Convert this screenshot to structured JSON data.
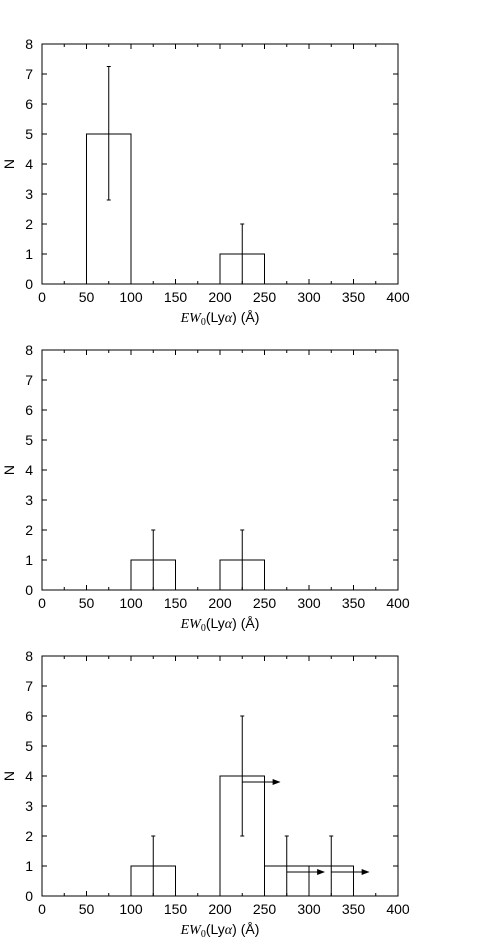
{
  "chart_data": [
    {
      "type": "bar",
      "style": "histogram-step",
      "xlabel": "EW0(Lyα) (Å)",
      "xlabel_parts": [
        "EW",
        "0",
        "(Ly",
        "α",
        ") (Å)"
      ],
      "ylabel": "N",
      "xlim": [
        0,
        400
      ],
      "ylim": [
        0,
        8
      ],
      "xticks": [
        0,
        50,
        100,
        150,
        200,
        250,
        300,
        350,
        400
      ],
      "yticks": [
        0,
        1,
        2,
        3,
        4,
        5,
        6,
        7,
        8
      ],
      "bin_width": 50,
      "bins": [
        {
          "x0": 0,
          "x1": 50,
          "n": 0
        },
        {
          "x0": 50,
          "x1": 100,
          "n": 5
        },
        {
          "x0": 100,
          "x1": 150,
          "n": 0
        },
        {
          "x0": 150,
          "x1": 200,
          "n": 0
        },
        {
          "x0": 200,
          "x1": 250,
          "n": 1
        },
        {
          "x0": 250,
          "x1": 300,
          "n": 0
        },
        {
          "x0": 300,
          "x1": 350,
          "n": 0
        },
        {
          "x0": 350,
          "x1": 400,
          "n": 0
        }
      ],
      "errorbars": [
        {
          "x": 75,
          "low": 2.8,
          "high": 7.25
        },
        {
          "x": 225,
          "low": 0,
          "high": 2
        }
      ],
      "lower_limit_arrows": []
    },
    {
      "type": "bar",
      "style": "histogram-step",
      "xlabel": "EW0(Lyα) (Å)",
      "xlabel_parts": [
        "EW",
        "0",
        "(Ly",
        "α",
        ") (Å)"
      ],
      "ylabel": "N",
      "xlim": [
        0,
        400
      ],
      "ylim": [
        0,
        8
      ],
      "xticks": [
        0,
        50,
        100,
        150,
        200,
        250,
        300,
        350,
        400
      ],
      "yticks": [
        0,
        1,
        2,
        3,
        4,
        5,
        6,
        7,
        8
      ],
      "bin_width": 50,
      "bins": [
        {
          "x0": 0,
          "x1": 50,
          "n": 0
        },
        {
          "x0": 50,
          "x1": 100,
          "n": 0
        },
        {
          "x0": 100,
          "x1": 150,
          "n": 1
        },
        {
          "x0": 150,
          "x1": 200,
          "n": 0
        },
        {
          "x0": 200,
          "x1": 250,
          "n": 1
        },
        {
          "x0": 250,
          "x1": 300,
          "n": 0
        },
        {
          "x0": 300,
          "x1": 350,
          "n": 0
        },
        {
          "x0": 350,
          "x1": 400,
          "n": 0
        }
      ],
      "errorbars": [
        {
          "x": 125,
          "low": 0,
          "high": 2
        },
        {
          "x": 225,
          "low": 0,
          "high": 2
        }
      ],
      "lower_limit_arrows": []
    },
    {
      "type": "bar",
      "style": "histogram-step",
      "xlabel": "EW0(Lyα) (Å)",
      "xlabel_parts": [
        "EW",
        "0",
        "(Ly",
        "α",
        ") (Å)"
      ],
      "ylabel": "N",
      "xlim": [
        0,
        400
      ],
      "ylim": [
        0,
        8
      ],
      "xticks": [
        0,
        50,
        100,
        150,
        200,
        250,
        300,
        350,
        400
      ],
      "yticks": [
        0,
        1,
        2,
        3,
        4,
        5,
        6,
        7,
        8
      ],
      "bin_width": 50,
      "bins": [
        {
          "x0": 0,
          "x1": 50,
          "n": 0
        },
        {
          "x0": 50,
          "x1": 100,
          "n": 0
        },
        {
          "x0": 100,
          "x1": 150,
          "n": 1
        },
        {
          "x0": 150,
          "x1": 200,
          "n": 0
        },
        {
          "x0": 200,
          "x1": 250,
          "n": 4
        },
        {
          "x0": 250,
          "x1": 300,
          "n": 1
        },
        {
          "x0": 300,
          "x1": 350,
          "n": 1
        },
        {
          "x0": 350,
          "x1": 400,
          "n": 0
        }
      ],
      "errorbars": [
        {
          "x": 125,
          "low": 0,
          "high": 2
        },
        {
          "x": 225,
          "low": 2,
          "high": 6
        },
        {
          "x": 275,
          "low": 0,
          "high": 2
        },
        {
          "x": 325,
          "low": 0,
          "high": 2
        }
      ],
      "lower_limit_arrows": [
        {
          "x_start": 225,
          "x_end": 267,
          "y": 3.8
        },
        {
          "x_start": 275,
          "x_end": 317,
          "y": 0.8
        },
        {
          "x_start": 325,
          "x_end": 367,
          "y": 0.8
        }
      ]
    }
  ]
}
